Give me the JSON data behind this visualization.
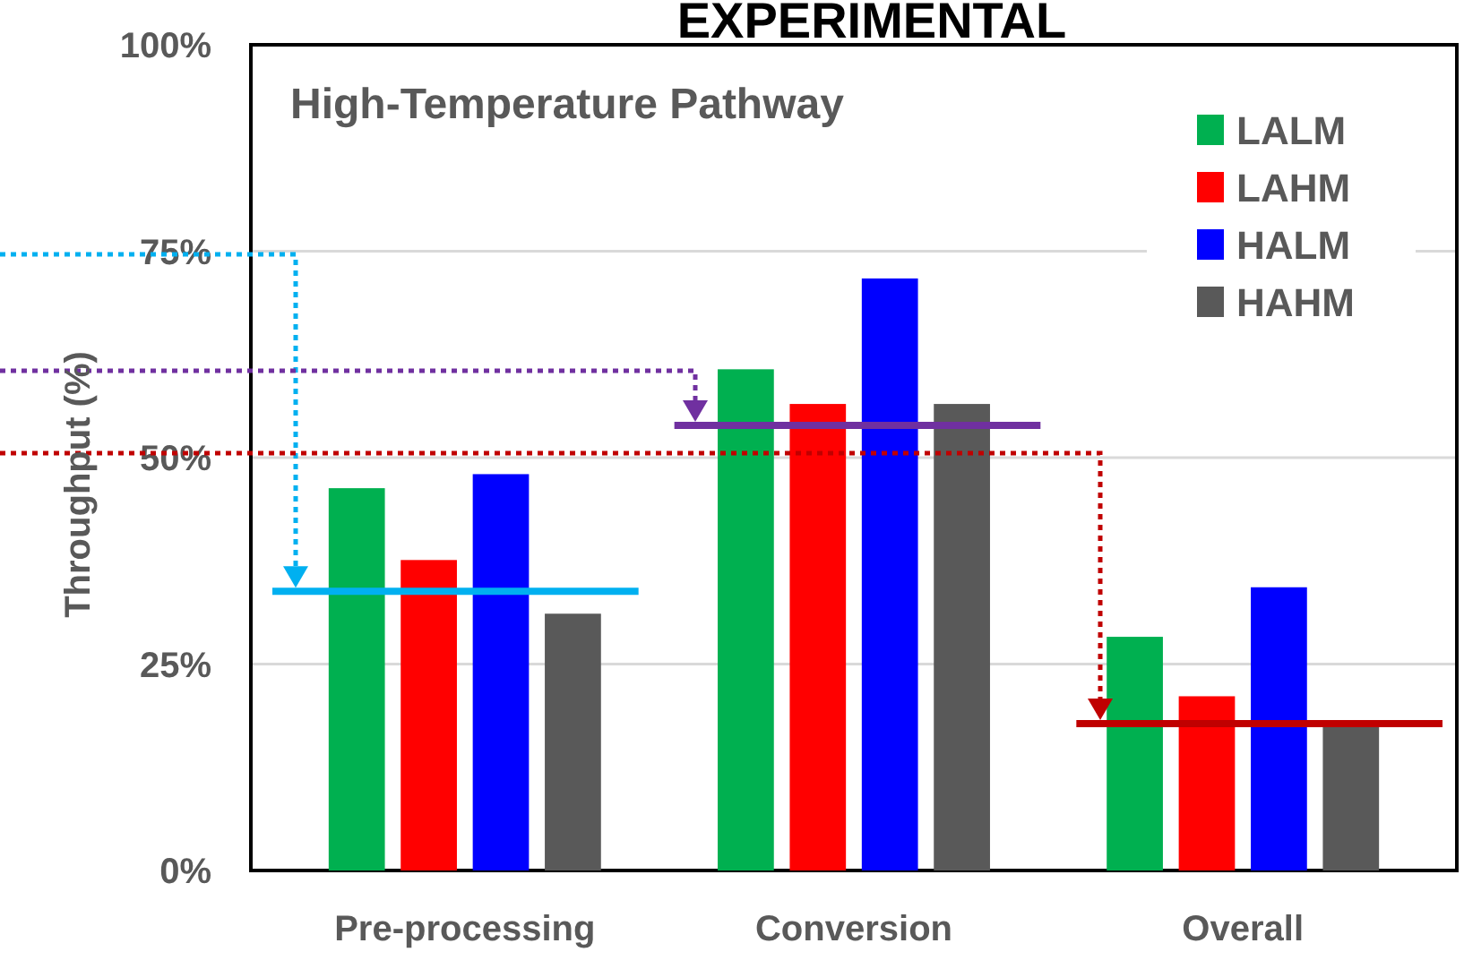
{
  "chart_data": {
    "type": "bar",
    "title": "EXPERIMENTAL",
    "subtitle": "High-Temperature Pathway",
    "ylabel": "Throughput (%)",
    "categories": [
      "Pre-processing",
      "Conversion",
      "Overall"
    ],
    "series": [
      {
        "name": "LALM",
        "color": "#00b050",
        "values": [
          46.3,
          60.7,
          28.3
        ]
      },
      {
        "name": "LAHM",
        "color": "#ff0000",
        "values": [
          37.6,
          56.5,
          21.1
        ]
      },
      {
        "name": "HALM",
        "color": "#0000ff",
        "values": [
          48,
          71.7,
          34.3
        ]
      },
      {
        "name": "HAHM",
        "color": "#595959",
        "values": [
          31.1,
          56.5,
          17.8
        ]
      }
    ],
    "ylim": [
      0,
      100
    ],
    "yticks": [
      {
        "value": 0,
        "label": "0%"
      },
      {
        "value": 25,
        "label": "25%"
      },
      {
        "value": 50,
        "label": "50%"
      },
      {
        "value": 75,
        "label": "75%"
      },
      {
        "value": 100,
        "label": "100%"
      }
    ],
    "ref_lines": [
      {
        "axis": "y",
        "value": 33.8,
        "color": "#00b0f0"
      },
      {
        "axis": "y",
        "value": 53.9,
        "color": "#7030a0"
      },
      {
        "axis": "y",
        "value": 17.8,
        "color": "#c00000"
      }
    ],
    "grid": "y",
    "legend": "top right"
  }
}
